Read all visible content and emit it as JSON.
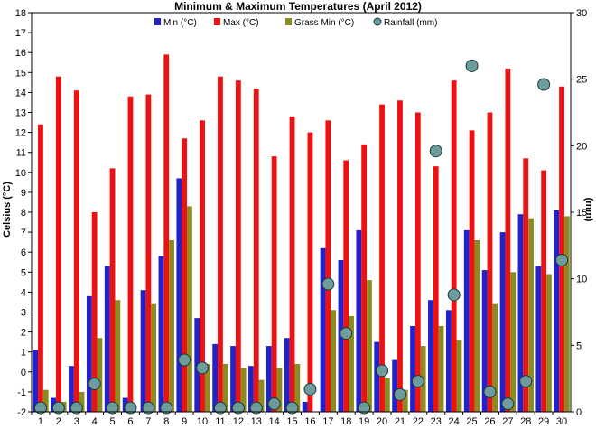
{
  "chart_data": {
    "type": "bar",
    "title": "Minimum & Maximum Temperatures (April 2012)",
    "ylabel": "Celsius (°C)",
    "y2label": "(mm)",
    "ylim": [
      -2,
      18
    ],
    "y2lim": [
      0,
      30
    ],
    "yticks": [
      -2,
      -1,
      0,
      1,
      2,
      3,
      4,
      5,
      6,
      7,
      8,
      9,
      10,
      11,
      12,
      13,
      14,
      15,
      16,
      17,
      18
    ],
    "y2ticks": [
      0,
      5,
      10,
      15,
      20,
      25,
      30
    ],
    "categories": [
      "1",
      "2",
      "3",
      "4",
      "5",
      "6",
      "7",
      "8",
      "9",
      "10",
      "11",
      "12",
      "13",
      "14",
      "15",
      "16",
      "17",
      "18",
      "19",
      "20",
      "21",
      "22",
      "23",
      "24",
      "25",
      "26",
      "27",
      "28",
      "29",
      "30"
    ],
    "legend_position": "top",
    "grid": false,
    "series": [
      {
        "name": "Min (°C)",
        "color": "#2222cc",
        "axis": "left",
        "values": [
          1.1,
          -1.3,
          0.3,
          3.8,
          5.3,
          -1.3,
          4.1,
          5.8,
          9.7,
          2.7,
          1.4,
          1.3,
          0.3,
          1.3,
          1.7,
          -1.5,
          6.2,
          5.6,
          7.1,
          1.5,
          0.6,
          2.3,
          3.6,
          3.1,
          7.1,
          5.1,
          7.0,
          7.9,
          5.3,
          8.1
        ]
      },
      {
        "name": "Max (°C)",
        "color": "#ee1111",
        "axis": "left",
        "values": [
          12.4,
          14.8,
          14.1,
          8.0,
          10.2,
          13.8,
          13.9,
          15.9,
          11.7,
          12.6,
          14.8,
          14.6,
          14.2,
          10.8,
          12.8,
          12.0,
          12.6,
          10.6,
          11.4,
          13.4,
          13.6,
          13.0,
          10.3,
          14.6,
          12.1,
          13.0,
          15.2,
          10.7,
          10.1,
          14.3
        ]
      },
      {
        "name": "Grass Min (°C)",
        "color": "#8b8b22",
        "axis": "left",
        "values": [
          -0.9,
          -1.5,
          -1.0,
          1.7,
          3.6,
          -2.0,
          3.4,
          6.6,
          8.3,
          0.4,
          0.4,
          0.2,
          -0.4,
          0.2,
          0.4,
          -2.0,
          3.1,
          2.8,
          4.6,
          -0.3,
          -0.9,
          1.3,
          2.3,
          1.6,
          6.6,
          3.4,
          5.0,
          7.7,
          4.9,
          7.8
        ]
      },
      {
        "name": "Rainfall (mm)",
        "color": "#6e9c9c",
        "axis": "right",
        "marker": "circle",
        "values": [
          0.3,
          0.3,
          0.3,
          2.1,
          0.3,
          0.3,
          0.3,
          0.3,
          3.9,
          3.3,
          0.3,
          0.3,
          0.3,
          0.6,
          0.3,
          1.7,
          9.6,
          5.9,
          0.3,
          3.1,
          1.3,
          2.3,
          19.6,
          8.8,
          26.0,
          1.5,
          0.6,
          2.3,
          24.6,
          11.4
        ]
      }
    ]
  }
}
